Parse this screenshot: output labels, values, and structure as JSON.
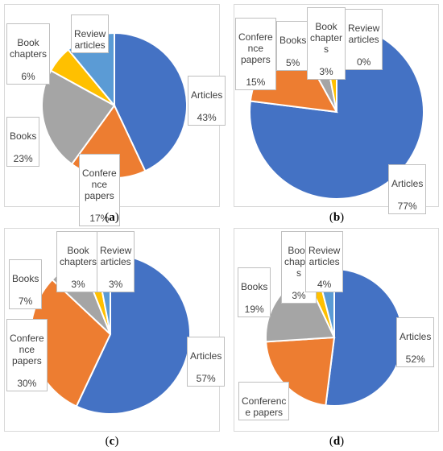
{
  "colors": {
    "Articles": "#4472C4",
    "Conference papers": "#ED7D31",
    "Books": "#A5A5A5",
    "Book chapters": "#FFC000",
    "Review articles": "#5B9BD5"
  },
  "chart_data": [
    {
      "type": "pie",
      "panel": "a",
      "caption": "a",
      "slices": [
        {
          "name": "Articles",
          "value": 43,
          "label_text": "Articles",
          "pct_text": "43%"
        },
        {
          "name": "Conference papers",
          "value": 17,
          "label_text": "Confere\nnce\npapers",
          "pct_text": "17%"
        },
        {
          "name": "Books",
          "value": 23,
          "label_text": "Books",
          "pct_text": "23%"
        },
        {
          "name": "Book chapters",
          "value": 6,
          "label_text": "Book\nchapters",
          "pct_text": "6%"
        },
        {
          "name": "Review articles",
          "value": 11,
          "label_text": "Review\narticles",
          "pct_text": ""
        }
      ]
    },
    {
      "type": "pie",
      "panel": "b",
      "caption": "b",
      "slices": [
        {
          "name": "Articles",
          "value": 77,
          "label_text": "Articles",
          "pct_text": "77%"
        },
        {
          "name": "Conference papers",
          "value": 15,
          "label_text": "Confere\nnce\npapers",
          "pct_text": "15%"
        },
        {
          "name": "Books",
          "value": 5,
          "label_text": "Books",
          "pct_text": "5%"
        },
        {
          "name": "Book chapters",
          "value": 3,
          "label_text": "Book\nchapter\ns",
          "pct_text": "3%"
        },
        {
          "name": "Review articles",
          "value": 0,
          "label_text": "Review\narticles",
          "pct_text": "0%"
        }
      ]
    },
    {
      "type": "pie",
      "panel": "c",
      "caption": "c",
      "slices": [
        {
          "name": "Articles",
          "value": 57,
          "label_text": "Articles",
          "pct_text": "57%"
        },
        {
          "name": "Conference papers",
          "value": 30,
          "label_text": "Confere\nnce\npapers",
          "pct_text": "30%"
        },
        {
          "name": "Books",
          "value": 7,
          "label_text": "Books",
          "pct_text": "7%"
        },
        {
          "name": "Book chapters",
          "value": 3,
          "label_text": "Book\nchapters",
          "pct_text": "3%"
        },
        {
          "name": "Review articles",
          "value": 3,
          "label_text": "Review\narticles",
          "pct_text": "3%"
        }
      ]
    },
    {
      "type": "pie",
      "panel": "d",
      "caption": "d",
      "slices": [
        {
          "name": "Articles",
          "value": 52,
          "label_text": "Articles",
          "pct_text": "52%"
        },
        {
          "name": "Conference papers",
          "value": 22,
          "label_text": "Conferenc\ne papers",
          "pct_text": ""
        },
        {
          "name": "Books",
          "value": 19,
          "label_text": "Books",
          "pct_text": "19%"
        },
        {
          "name": "Book chapters",
          "value": 3,
          "label_text": "Book\nchapte\ns",
          "pct_text": "3%"
        },
        {
          "name": "Review articles",
          "value": 4,
          "label_text": "Review\narticles",
          "pct_text": "4%"
        }
      ]
    }
  ]
}
